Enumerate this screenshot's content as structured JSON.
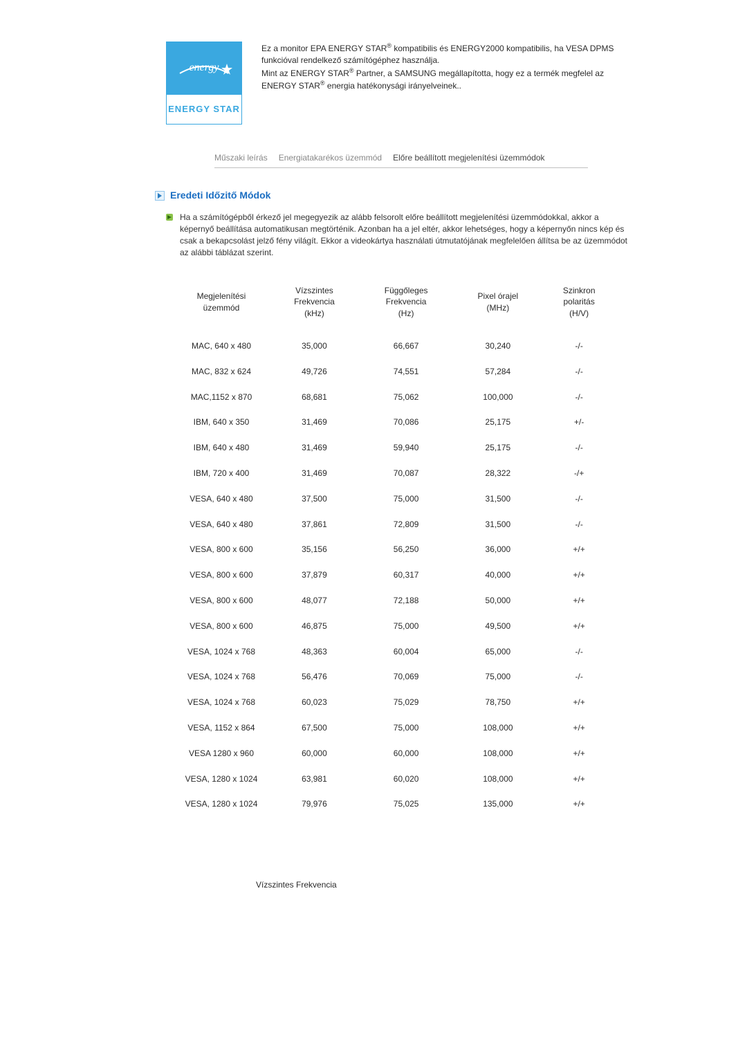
{
  "logo": {
    "text": "ENERGY STAR",
    "script": "energy"
  },
  "intro": {
    "line1a": "Ez a monitor EPA ENERGY STAR",
    "line1b": " kompatibilis és ENERGY2000 kompatibilis, ha VESA DPMS funkcióval rendelkező számítógéphez használja.",
    "line2a": "Mint az ENERGY STAR",
    "line2b": " Partner, a SAMSUNG megállapította, hogy ez a termék megfelel az ENERGY STAR",
    "line2c": " energia hatékonysági irányelveinek.."
  },
  "tabs": {
    "t1": "Műszaki leírás",
    "t2": "Energiatakarékos üzemmód",
    "t3": "Előre beállított megjelenítési üzemmódok"
  },
  "section": {
    "title": "Eredeti Időzitő Módok",
    "desc": "Ha a számítógépből érkező jel megegyezik az alább felsorolt előre beállított megjelenítési üzemmódokkal, akkor a képernyő beállítása automatikusan megtörténik. Azonban ha a jel eltér, akkor lehetséges, hogy a képernyőn nincs kép és csak a bekapcsolást jelző fény világít. Ekkor a videokártya használati útmutatójának megfelelően állítsa be az üzemmódot az alábbi táblázat szerint."
  },
  "columns": {
    "mode": "Megjelenítési\nüzemmód",
    "hfreq": "Vízszintes\nFrekvencia\n(kHz)",
    "vfreq": "Függőleges\nFrekvencia\n(Hz)",
    "pixel": "Pixel órajel\n(MHz)",
    "sync": "Szinkron\npolaritás\n(H/V)"
  },
  "rows": [
    {
      "m": "MAC, 640 x 480",
      "h": "35,000",
      "v": "66,667",
      "p": "30,240",
      "s": "-/-"
    },
    {
      "m": "MAC, 832 x 624",
      "h": "49,726",
      "v": "74,551",
      "p": "57,284",
      "s": "-/-"
    },
    {
      "m": "MAC,1152 x 870",
      "h": "68,681",
      "v": "75,062",
      "p": "100,000",
      "s": "-/-"
    },
    {
      "m": "IBM, 640 x 350",
      "h": "31,469",
      "v": "70,086",
      "p": "25,175",
      "s": "+/-"
    },
    {
      "m": "IBM, 640 x 480",
      "h": "31,469",
      "v": "59,940",
      "p": "25,175",
      "s": "-/-"
    },
    {
      "m": "IBM, 720 x 400",
      "h": "31,469",
      "v": "70,087",
      "p": "28,322",
      "s": "-/+"
    },
    {
      "m": "VESA, 640 x 480",
      "h": "37,500",
      "v": "75,000",
      "p": "31,500",
      "s": "-/-"
    },
    {
      "m": "VESA, 640 x 480",
      "h": "37,861",
      "v": "72,809",
      "p": "31,500",
      "s": "-/-"
    },
    {
      "m": "VESA, 800 x 600",
      "h": "35,156",
      "v": "56,250",
      "p": "36,000",
      "s": "+/+"
    },
    {
      "m": "VESA, 800 x 600",
      "h": "37,879",
      "v": "60,317",
      "p": "40,000",
      "s": "+/+"
    },
    {
      "m": "VESA, 800 x 600",
      "h": "48,077",
      "v": "72,188",
      "p": "50,000",
      "s": "+/+"
    },
    {
      "m": "VESA, 800 x 600",
      "h": "46,875",
      "v": "75,000",
      "p": "49,500",
      "s": "+/+"
    },
    {
      "m": "VESA, 1024 x 768",
      "h": "48,363",
      "v": "60,004",
      "p": "65,000",
      "s": "-/-"
    },
    {
      "m": "VESA, 1024 x 768",
      "h": "56,476",
      "v": "70,069",
      "p": "75,000",
      "s": "-/-"
    },
    {
      "m": "VESA, 1024 x 768",
      "h": "60,023",
      "v": "75,029",
      "p": "78,750",
      "s": "+/+"
    },
    {
      "m": "VESA, 1152 x 864",
      "h": "67,500",
      "v": "75,000",
      "p": "108,000",
      "s": "+/+"
    },
    {
      "m": "VESA 1280 x 960",
      "h": "60,000",
      "v": "60,000",
      "p": "108,000",
      "s": "+/+"
    },
    {
      "m": "VESA, 1280 x 1024",
      "h": "63,981",
      "v": "60,020",
      "p": "108,000",
      "s": "+/+"
    },
    {
      "m": "VESA, 1280 x 1024",
      "h": "79,976",
      "v": "75,025",
      "p": "135,000",
      "s": "+/+"
    }
  ],
  "footer": {
    "label": "Vízszintes Frekvencia"
  }
}
